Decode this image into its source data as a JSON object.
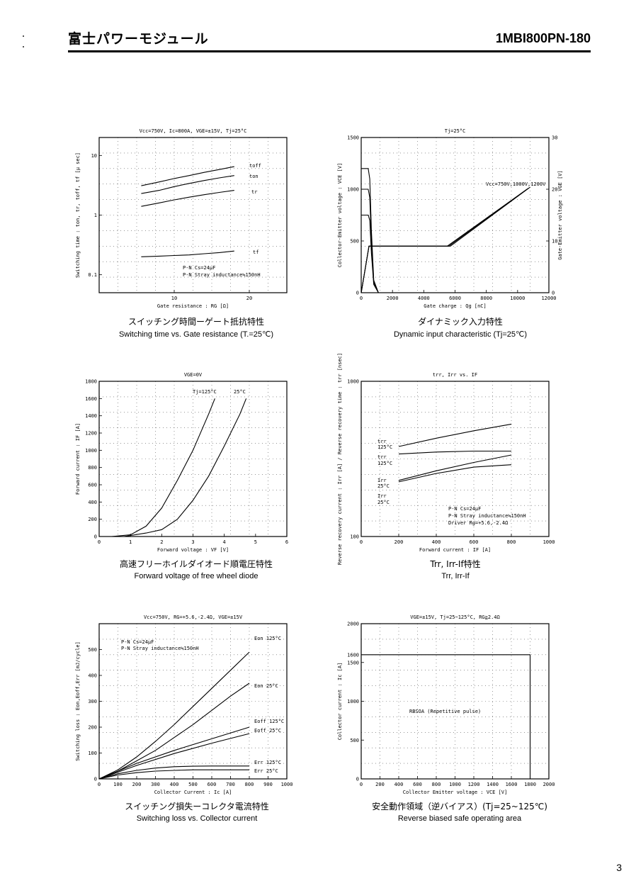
{
  "header": {
    "title_jp": "富士パワーモジュール",
    "part_number": "1MBI800PN-180"
  },
  "page_number": "3",
  "captions": [
    {
      "jp": "スイッチング時間ーゲート抵抗特性",
      "en": "Switching time vs. Gate resistance (T.=25℃)"
    },
    {
      "jp": "ダイナミック入力特性",
      "en": "Dynamic input characteristic (Tj=25℃)"
    },
    {
      "jp": "高速フリーホイルダイオード順電圧特性",
      "en": "Forward voltage of free wheel diode"
    },
    {
      "jp": "Trr, Irr-If特性",
      "en": "Trr, Irr-If"
    },
    {
      "jp": "スイッチング損失ーコレクタ電流特性",
      "en": "Switching loss vs. Collector current"
    },
    {
      "jp": "安全動作領域（逆バイアス）(Tj=25~125℃)",
      "en": "Reverse biased safe operating area"
    }
  ],
  "chart_data": [
    {
      "type": "line",
      "title": "Vcc=750V, Ic=800A, VGE=±15V, Tj=25°C",
      "xlabel": "Gate resistance : RG [Ω]",
      "ylabel": "Switching time : ton, tr, toff, tf [μ sec]",
      "x_scale": "linear",
      "y_scale": "log",
      "xlim": [
        0,
        25
      ],
      "ylim": [
        0.05,
        20
      ],
      "xticks": [
        "10",
        "20"
      ],
      "yticks": [
        "0.1",
        "1",
        "10"
      ],
      "annotations": [
        "P-N Cs=24μF",
        "P-N Stray inductance≒150nH"
      ],
      "series": [
        {
          "name": "toff",
          "x": [
            5.6,
            8,
            10,
            12,
            14,
            16,
            18
          ],
          "y": [
            3.1,
            3.6,
            4.1,
            4.6,
            5.2,
            5.8,
            6.5
          ]
        },
        {
          "name": "ton",
          "x": [
            5.6,
            8,
            10,
            12,
            14,
            16,
            18
          ],
          "y": [
            2.3,
            2.6,
            3.0,
            3.4,
            3.8,
            4.2,
            4.6
          ]
        },
        {
          "name": "tr",
          "x": [
            5.6,
            8,
            10,
            12,
            14,
            16,
            18
          ],
          "y": [
            1.4,
            1.6,
            1.8,
            2.0,
            2.2,
            2.4,
            2.6
          ]
        },
        {
          "name": "tf",
          "x": [
            5.6,
            8,
            10,
            12,
            14,
            16,
            18
          ],
          "y": [
            0.2,
            0.205,
            0.21,
            0.215,
            0.225,
            0.235,
            0.25
          ]
        }
      ]
    },
    {
      "type": "line",
      "title": "Tj=25°C",
      "xlabel": "Gate charge : Qg [nC]",
      "ylabel": "Collector-Emitter voltage : VCE [V]",
      "ylabel2": "Gate-Emitter voltage : VGE [V]",
      "xlim": [
        0,
        12000
      ],
      "ylim": [
        0,
        1500
      ],
      "y2lim": [
        0,
        30
      ],
      "xticks": [
        "0",
        "2000",
        "4000",
        "6000",
        "8000",
        "10000",
        "12000"
      ],
      "yticks": [
        "0",
        "500",
        "1000",
        "1500"
      ],
      "y2ticks": [
        "0",
        "10",
        "20",
        "30"
      ],
      "annotations": [
        "Vcc=750V,1000V,1200V"
      ],
      "series": [
        {
          "name": "VCE 1200V",
          "x": [
            0,
            450,
            550,
            650,
            800,
            1100
          ],
          "y": [
            1200,
            1200,
            1100,
            600,
            120,
            0
          ]
        },
        {
          "name": "VCE 1000V",
          "x": [
            0,
            450,
            550,
            650,
            800,
            1100
          ],
          "y": [
            1000,
            1000,
            920,
            500,
            100,
            0
          ]
        },
        {
          "name": "VCE 750V",
          "x": [
            0,
            450,
            550,
            650,
            800,
            1100
          ],
          "y": [
            750,
            750,
            700,
            380,
            80,
            0
          ]
        },
        {
          "name": "VGE 750V",
          "x": [
            0,
            500,
            5500,
            10600
          ],
          "y2": [
            -15,
            9,
            9,
            20
          ]
        },
        {
          "name": "VGE 1000V",
          "x": [
            0,
            500,
            5600,
            10700
          ],
          "y2": [
            -15,
            9,
            9,
            20.2
          ]
        },
        {
          "name": "VGE 1200V",
          "x": [
            0,
            500,
            5700,
            10800
          ],
          "y2": [
            -15,
            9,
            9,
            20.4
          ]
        }
      ]
    },
    {
      "type": "line",
      "title": "VGE=0V",
      "xlabel": "Forward voltage : VF [V]",
      "ylabel": "Forward current : IF [A]",
      "xlim": [
        0,
        6
      ],
      "ylim": [
        0,
        1800
      ],
      "xticks": [
        "0",
        "1",
        "2",
        "3",
        "4",
        "5",
        "6"
      ],
      "yticks": [
        "0",
        "200",
        "400",
        "600",
        "800",
        "1000",
        "1200",
        "1400",
        "1600",
        "1800"
      ],
      "series": [
        {
          "name": "Tj=125°C",
          "x": [
            0.4,
            1.0,
            1.5,
            2.0,
            2.5,
            3.0,
            3.5,
            3.7
          ],
          "y": [
            0,
            20,
            120,
            330,
            650,
            1000,
            1420,
            1600
          ]
        },
        {
          "name": "25°C",
          "x": [
            0.8,
            1.5,
            2.0,
            2.5,
            3.0,
            3.5,
            4.0,
            4.5,
            4.7
          ],
          "y": [
            0,
            40,
            80,
            200,
            420,
            700,
            1050,
            1420,
            1600
          ]
        }
      ]
    },
    {
      "type": "line",
      "title": "trr, Irr vs. IF",
      "xlabel": "Forward current : IF [A]",
      "ylabel": "Reverse recovery current : Irr [A] / Reverse recovery time : trr [nsec]",
      "x_scale": "linear",
      "y_scale": "log",
      "xlim": [
        0,
        1000
      ],
      "ylim": [
        100,
        1000
      ],
      "xticks": [
        "0",
        "200",
        "400",
        "600",
        "800",
        "1000"
      ],
      "yticks": [
        "100",
        "1000"
      ],
      "annotations": [
        "P-N Cs=24μF",
        "P-N Stray inductance≒150nH",
        "Driver Rg=+5.6,-2.4Ω"
      ],
      "series": [
        {
          "name": "trr 125°C",
          "x": [
            200,
            400,
            600,
            800
          ],
          "y": [
            380,
            430,
            480,
            530
          ]
        },
        {
          "name": "trr 25°C",
          "x": [
            200,
            400,
            600,
            800
          ],
          "y": [
            340,
            350,
            355,
            355
          ]
        },
        {
          "name": "Irr 125°C",
          "x": [
            200,
            400,
            600,
            800
          ],
          "y": [
            230,
            265,
            300,
            335
          ]
        },
        {
          "name": "Irr 25°C",
          "x": [
            200,
            400,
            600,
            800
          ],
          "y": [
            225,
            255,
            280,
            290
          ]
        }
      ]
    },
    {
      "type": "line",
      "title": "Vcc=750V, RG=+5.6,-2.4Ω, VGE=±15V",
      "xlabel": "Collector Current : Ic [A]",
      "ylabel": "Switching loss : Eon,Eoff,Err [mJ/cycle]",
      "xlim": [
        0,
        1000
      ],
      "ylim": [
        0,
        600
      ],
      "xticks": [
        "0",
        "100",
        "200",
        "300",
        "400",
        "500",
        "600",
        "700",
        "800",
        "900",
        "1000"
      ],
      "yticks": [
        "0",
        "100",
        "200",
        "300",
        "400",
        "500"
      ],
      "annotations": [
        "P-N Cs=24μF",
        "P-N Stray inductance≒150nH"
      ],
      "series": [
        {
          "name": "Eon 125°C",
          "x": [
            0,
            100,
            200,
            300,
            400,
            500,
            600,
            700,
            800
          ],
          "y": [
            0,
            35,
            85,
            145,
            210,
            280,
            350,
            420,
            490
          ]
        },
        {
          "name": "Eon 25°C",
          "x": [
            0,
            100,
            200,
            300,
            400,
            500,
            600,
            700,
            800
          ],
          "y": [
            0,
            30,
            70,
            110,
            160,
            210,
            265,
            320,
            370
          ]
        },
        {
          "name": "Eoff 125°C",
          "x": [
            0,
            200,
            400,
            600,
            800
          ],
          "y": [
            0,
            60,
            110,
            155,
            200
          ]
        },
        {
          "name": "Eoff 25°C",
          "x": [
            0,
            200,
            400,
            600,
            800
          ],
          "y": [
            0,
            52,
            98,
            138,
            175
          ]
        },
        {
          "name": "Err 125°C",
          "x": [
            0,
            100,
            200,
            300,
            400,
            500,
            600,
            700,
            800
          ],
          "y": [
            0,
            20,
            33,
            42,
            47,
            49,
            50,
            50,
            50
          ]
        },
        {
          "name": "Err 25°C",
          "x": [
            0,
            100,
            200,
            300,
            400,
            500,
            600,
            700,
            800
          ],
          "y": [
            0,
            15,
            24,
            30,
            33,
            35,
            35,
            35,
            35
          ]
        }
      ]
    },
    {
      "type": "line",
      "title": "VGE=±15V, Tj=25~125°C, RG≧2.4Ω",
      "xlabel": "Collector Emitter voltage : VCE [V]",
      "ylabel": "Collector current : Ic [A]",
      "xlim": [
        0,
        2000
      ],
      "ylim": [
        0,
        2000
      ],
      "xticks": [
        "0",
        "200",
        "400",
        "600",
        "800",
        "1000",
        "1200",
        "1400",
        "1600",
        "1800",
        "2000"
      ],
      "yticks": [
        "0",
        "500",
        "1000",
        "1500",
        "2000"
      ],
      "extra_ytick": "1600",
      "annotations": [
        "RBSOA (Repetitive pulse)"
      ],
      "series": [
        {
          "name": "RBSOA",
          "x": [
            0,
            1800,
            1800
          ],
          "y": [
            1600,
            1600,
            0
          ]
        }
      ]
    }
  ]
}
